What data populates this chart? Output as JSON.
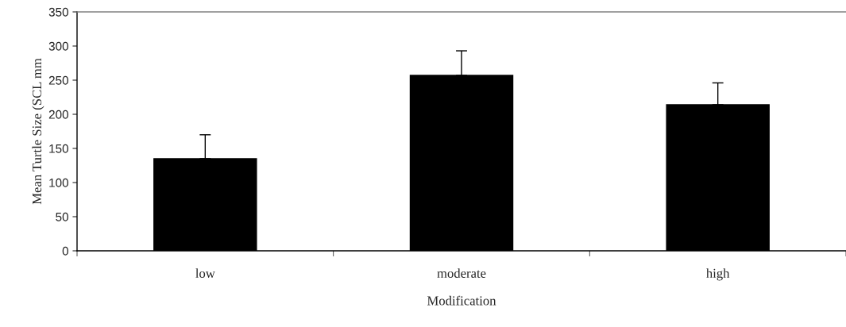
{
  "chart_data": {
    "type": "bar",
    "xlabel": "Modification",
    "ylabel": "Mean Turtle Size (SCL mm",
    "categories": [
      "low",
      "moderate",
      "high"
    ],
    "values": [
      135,
      257,
      214
    ],
    "errors": [
      [
        135,
        170
      ],
      [
        257,
        293
      ],
      [
        214,
        246
      ]
    ],
    "color": "#000000",
    "ylim": [
      0,
      350
    ],
    "yticks": [
      0,
      50,
      100,
      150,
      200,
      250,
      300,
      350
    ],
    "grid": false,
    "legend": false
  }
}
